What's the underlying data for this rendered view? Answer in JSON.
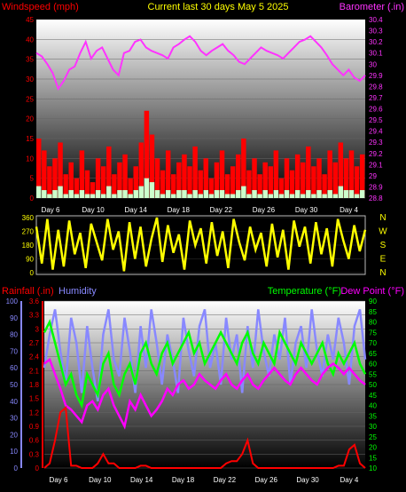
{
  "header": {
    "title": "Current last 30 days May 5 2025",
    "left_label": "Windspeed (mph)",
    "right_label": "Barometer (.in)"
  },
  "colors": {
    "wind_max": "#ff0000",
    "wind_avg": "#ccffcc",
    "barometer": "#ff33ff",
    "direction": "#ffff00",
    "humidity": "#8888ff",
    "temperature": "#00ff00",
    "dewpoint": "#ff00ff",
    "rain": "#ff0000",
    "axis_left": "#ff0000",
    "label_yellow": "#ffff00"
  },
  "x_labels": [
    "Day 6",
    "Day 10",
    "Day 14",
    "Day 18",
    "Day 22",
    "Day 26",
    "Day 30",
    "Day 4"
  ],
  "chart_data": [
    {
      "type": "line",
      "title": "Current last 30 days May 5 2025",
      "ylabel": "Windspeed (mph)",
      "y2label": "Barometer (.in)",
      "yticks": [
        0,
        5,
        10,
        15,
        20,
        25,
        30,
        35,
        40,
        45
      ],
      "y2ticks": [
        "28.8",
        "28.9",
        "29",
        "29.1",
        "29.2",
        "29.3",
        "29.4",
        "29.5",
        "29.6",
        "29.7",
        "29.8",
        "29.9",
        "30",
        "30.1",
        "30.2",
        "30.3",
        "30.4"
      ],
      "ylim": [
        0,
        45
      ],
      "y2lim": [
        28.8,
        30.4
      ],
      "series": [
        {
          "name": "Barometer (.in)",
          "axis": "right",
          "values": [
            30.1,
            30.07,
            30.0,
            29.92,
            29.78,
            29.85,
            29.95,
            29.98,
            30.1,
            30.2,
            30.05,
            30.12,
            30.15,
            30.05,
            29.95,
            29.9,
            30.1,
            30.12,
            30.2,
            30.22,
            30.15,
            30.12,
            30.1,
            30.08,
            30.05,
            30.15,
            30.18,
            30.22,
            30.25,
            30.2,
            30.12,
            30.08,
            30.12,
            30.15,
            30.18,
            30.12,
            30.08,
            30.02,
            30.0,
            30.05,
            30.1,
            30.15,
            30.12,
            30.1,
            30.08,
            30.05,
            30.1,
            30.15,
            30.2,
            30.22,
            30.25,
            30.2,
            30.15,
            30.08,
            30.0,
            29.95,
            29.9,
            29.95,
            29.88,
            29.85,
            29.9
          ]
        },
        {
          "name": "Wind max",
          "axis": "left",
          "values": [
            15,
            12,
            8,
            10,
            14,
            6,
            9,
            5,
            12,
            7,
            4,
            10,
            8,
            13,
            6,
            9,
            11,
            5,
            8,
            14,
            22,
            16,
            10,
            7,
            12,
            6,
            9,
            11,
            8,
            13,
            7,
            10,
            5,
            9,
            12,
            6,
            8,
            11,
            15,
            7,
            10,
            6,
            9,
            8,
            12,
            5,
            10,
            7,
            11,
            9,
            13,
            8,
            10,
            6,
            12,
            9,
            14,
            10,
            12,
            8,
            11
          ]
        },
        {
          "name": "Wind avg",
          "axis": "left",
          "values": [
            3,
            2,
            1,
            2,
            3,
            1,
            2,
            1,
            2,
            1,
            1,
            2,
            1,
            3,
            1,
            2,
            2,
            1,
            2,
            3,
            5,
            4,
            2,
            1,
            2,
            1,
            2,
            2,
            1,
            2,
            1,
            2,
            1,
            2,
            2,
            1,
            1,
            2,
            3,
            1,
            2,
            1,
            2,
            1,
            2,
            1,
            2,
            1,
            2,
            1,
            2,
            1,
            2,
            1,
            2,
            1,
            3,
            2,
            2,
            1,
            2
          ]
        }
      ]
    },
    {
      "type": "line",
      "ylabel": "Wind direction",
      "yticks": [
        0,
        90,
        180,
        270,
        360
      ],
      "ylim": [
        0,
        360
      ],
      "compass": [
        "N",
        "W",
        "S",
        "E",
        "N"
      ],
      "values": [
        300,
        60,
        350,
        20,
        280,
        40,
        340,
        120,
        260,
        30,
        320,
        200,
        80,
        350,
        150,
        270,
        10,
        330,
        90,
        300,
        40,
        220,
        360,
        70,
        310,
        130,
        250,
        20,
        340,
        180,
        290,
        60,
        330,
        110,
        270,
        30,
        350,
        200,
        80,
        300,
        150,
        260,
        40,
        320,
        100,
        280,
        20,
        340,
        170,
        300,
        60,
        330,
        120,
        290,
        40,
        350,
        210,
        90,
        310,
        140,
        280
      ]
    },
    {
      "type": "line",
      "ylabel": "Rainfall (.in)",
      "ylabel2": "Humidity",
      "y2label": "Temperature (°F)",
      "y3label": "Dew Point (°F)",
      "humidity_ticks": [
        0,
        10,
        20,
        30,
        40,
        50,
        60,
        70,
        80,
        90,
        100
      ],
      "rain_ticks": [
        "0",
        "0.3",
        "0.6",
        "0.9",
        "1.2",
        "1.5",
        "1.8",
        "2.1",
        "2.4",
        "2.7",
        "3",
        "3.3",
        "3.6"
      ],
      "temp_ticks": [
        10,
        15,
        20,
        25,
        30,
        35,
        40,
        45,
        50,
        55,
        60,
        65,
        70,
        75,
        80,
        85,
        90
      ],
      "series": [
        {
          "name": "Humidity",
          "axis": "humidity",
          "values": [
            60,
            80,
            95,
            70,
            50,
            90,
            75,
            45,
            85,
            60,
            40,
            80,
            95,
            65,
            55,
            90,
            70,
            45,
            85,
            60,
            95,
            75,
            50,
            80,
            65,
            45,
            90,
            70,
            55,
            85,
            95,
            60,
            75,
            50,
            90,
            65,
            80,
            45,
            85,
            60,
            95,
            70,
            55,
            80,
            65,
            90,
            50,
            75,
            85,
            60,
            95,
            70,
            55,
            80,
            65,
            90,
            75,
            50,
            85,
            95,
            65
          ]
        },
        {
          "name": "Temperature (°F)",
          "axis": "temp",
          "values": [
            75,
            80,
            70,
            60,
            50,
            55,
            45,
            40,
            55,
            50,
            45,
            60,
            65,
            50,
            45,
            55,
            60,
            50,
            65,
            70,
            60,
            55,
            65,
            70,
            60,
            65,
            70,
            75,
            65,
            70,
            60,
            65,
            70,
            75,
            70,
            65,
            60,
            70,
            75,
            65,
            60,
            70,
            65,
            60,
            75,
            70,
            65,
            60,
            70,
            65,
            60,
            65,
            70,
            60,
            55,
            65,
            60,
            65,
            70,
            60,
            55
          ]
        },
        {
          "name": "Dew Point (°F)",
          "axis": "temp",
          "values": [
            60,
            62,
            55,
            48,
            40,
            38,
            35,
            32,
            40,
            42,
            38,
            45,
            48,
            40,
            35,
            30,
            42,
            38,
            45,
            40,
            35,
            38,
            42,
            48,
            45,
            50,
            52,
            48,
            50,
            55,
            52,
            50,
            48,
            52,
            55,
            50,
            48,
            52,
            55,
            50,
            48,
            52,
            55,
            58,
            55,
            52,
            50,
            55,
            58,
            55,
            52,
            50,
            55,
            58,
            60,
            58,
            55,
            58,
            55,
            52,
            50
          ]
        },
        {
          "name": "Rainfall (.in)",
          "axis": "rain",
          "values": [
            0,
            0.1,
            0.6,
            1.2,
            1.3,
            0.05,
            0.05,
            0,
            0,
            0,
            0.1,
            0.3,
            0.1,
            0.1,
            0,
            0,
            0,
            0,
            0.05,
            0.05,
            0,
            0,
            0,
            0,
            0,
            0,
            0,
            0,
            0,
            0,
            0,
            0,
            0,
            0,
            0.1,
            0.15,
            0.15,
            0.3,
            0.6,
            0.1,
            0,
            0,
            0,
            0,
            0,
            0,
            0,
            0,
            0,
            0,
            0,
            0,
            0,
            0,
            0,
            0.05,
            0.05,
            0.4,
            0.5,
            0.1,
            0
          ]
        }
      ]
    }
  ]
}
